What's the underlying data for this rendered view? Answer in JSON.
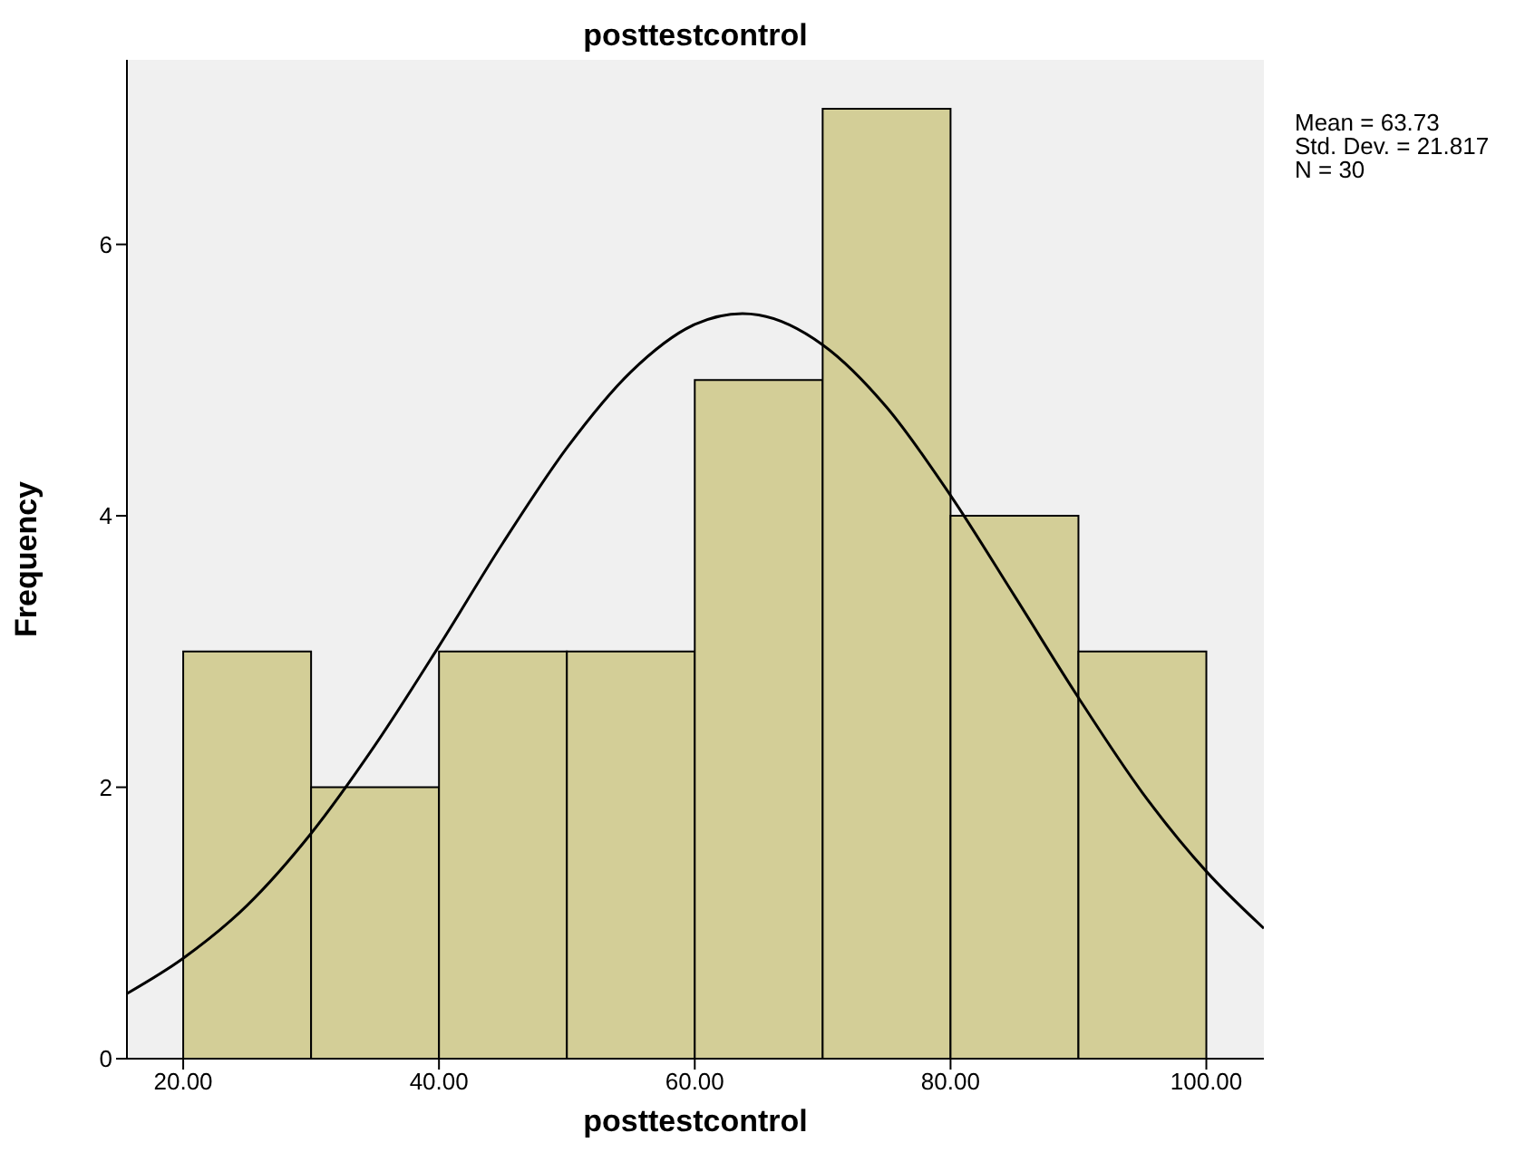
{
  "chart_data": {
    "type": "histogram",
    "title": "posttestcontrol",
    "xlabel": "posttestcontrol",
    "ylabel": "Frequency",
    "bins": [
      20,
      30,
      40,
      50,
      60,
      70,
      80,
      90,
      100
    ],
    "values": [
      3,
      2,
      3,
      3,
      5,
      7,
      4,
      3
    ],
    "color": "#d3ce97",
    "series": [
      {
        "type": "line",
        "color": "#000000",
        "x": [
          15.6,
          20,
          25,
          30,
          35,
          40,
          45,
          50,
          55,
          60,
          63.73,
          65,
          70,
          75,
          80,
          85,
          90,
          95,
          100,
          104.5
        ],
        "values": [
          0.48,
          0.74,
          1.13,
          1.66,
          2.31,
          3.04,
          3.8,
          4.5,
          5.06,
          5.41,
          5.49,
          5.48,
          5.26,
          4.8,
          4.15,
          3.41,
          2.66,
          1.96,
          1.38,
          0.96
        ]
      }
    ],
    "xlim": [
      15.6,
      104.5
    ],
    "xticks": [
      {
        "value": 20,
        "label": "20.00"
      },
      {
        "value": 40,
        "label": "40.00"
      },
      {
        "value": 60,
        "label": "60.00"
      },
      {
        "value": 80,
        "label": "80.00"
      },
      {
        "value": 100,
        "label": "100.00"
      }
    ],
    "ylim": [
      0,
      7.36
    ],
    "yticks": [
      0,
      2,
      4,
      6
    ],
    "grid": false,
    "legend": false,
    "annotations": [
      "Mean = 63.73",
      "Std. Dev. = 21.817",
      "N = 30"
    ]
  }
}
